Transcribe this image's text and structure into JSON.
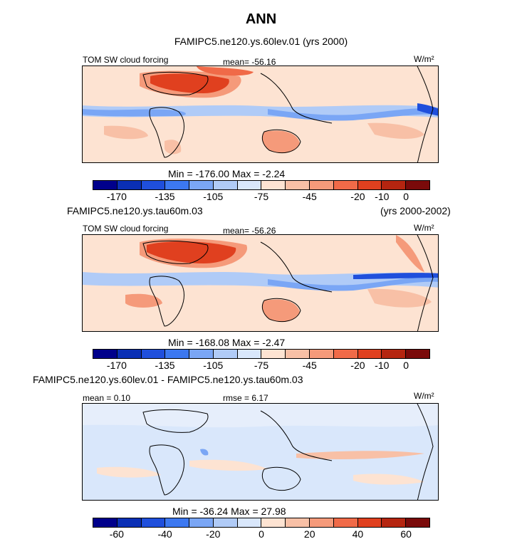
{
  "title": "ANN",
  "panel1": {
    "case": "FAMIPC5.ne120.ys.60lev.01 (yrs 2000)",
    "left_label": "TOM SW cloud forcing",
    "mean": "mean= -56.16",
    "units": "W/m²",
    "minmax": "Min = -176.00  Max =  -2.24"
  },
  "panel2": {
    "case": "FAMIPC5.ne120.ys.tau60m.03",
    "years": "(yrs 2000-2002)",
    "left_label": "TOM SW cloud forcing",
    "mean": "mean= -56.26",
    "units": "W/m²",
    "minmax": "Min = -168.08  Max =  -2.47"
  },
  "panel3": {
    "case": "FAMIPC5.ne120.ys.60lev.01 - FAMIPC5.ne120.ys.tau60m.03",
    "mean": "mean =   0.10",
    "rmse": "rmse =   6.17",
    "units": "W/m²",
    "minmax": "Min = -36.24  Max =  27.98"
  },
  "colorbar_abs": {
    "colors": [
      "#00008b",
      "#0a2fb5",
      "#1f4fdc",
      "#3c78f0",
      "#7aa6f5",
      "#b0cbf7",
      "#d9e7fb",
      "#fde3d2",
      "#f8c0a6",
      "#f59a7a",
      "#f06a48",
      "#e0401f",
      "#b52510",
      "#7a0a0a"
    ],
    "ticks": [
      "-170",
      "-135",
      "-105",
      "-75",
      "-45",
      "-20",
      "-10",
      "0"
    ]
  },
  "colorbar_diff": {
    "colors": [
      "#00008b",
      "#0a2fb5",
      "#1f4fdc",
      "#3c78f0",
      "#7aa6f5",
      "#b0cbf7",
      "#d9e7fb",
      "#fde3d2",
      "#f8c0a6",
      "#f59a7a",
      "#f06a48",
      "#e0401f",
      "#b52510",
      "#7a0a0a"
    ],
    "ticks": [
      "-60",
      "-40",
      "-20",
      "0",
      "20",
      "40",
      "60"
    ]
  }
}
